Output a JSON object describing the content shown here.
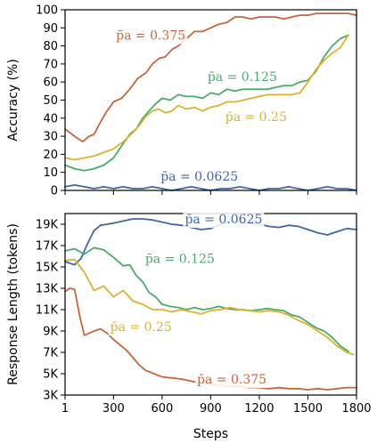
{
  "chart_data": [
    {
      "type": "line",
      "ylabel": "Accuracy (%)",
      "xlabel": "",
      "xlim": [
        1,
        1800
      ],
      "ylim": [
        0,
        100
      ],
      "yticks": [
        0,
        10,
        20,
        30,
        40,
        50,
        60,
        70,
        80,
        90,
        100
      ],
      "ytick_labels": [
        "0",
        "10",
        "20",
        "30",
        "40",
        "50",
        "60",
        "70",
        "80",
        "90",
        "100"
      ],
      "xticks": [
        1,
        300,
        600,
        900,
        1200,
        1500,
        1800
      ],
      "xtick_labels": [],
      "grid": false,
      "series": [
        {
          "name": "p̄a = 0.375",
          "color": "#c8653a",
          "label_x": 530,
          "label_y": 86,
          "x": [
            1,
            60,
            110,
            150,
            180,
            220,
            260,
            300,
            350,
            400,
            450,
            500,
            540,
            580,
            620,
            660,
            700,
            750,
            800,
            850,
            900,
            950,
            1000,
            1050,
            1100,
            1150,
            1200,
            1250,
            1300,
            1350,
            1400,
            1450,
            1500,
            1550,
            1600,
            1650,
            1700,
            1750,
            1800
          ],
          "y": [
            34,
            30,
            27,
            30,
            31,
            38,
            44,
            49,
            51,
            56,
            62,
            65,
            70,
            73,
            74,
            78,
            80,
            84,
            88,
            88,
            90,
            92,
            93,
            96,
            96,
            95,
            96,
            96,
            96,
            95,
            96,
            97,
            97,
            98,
            98,
            98,
            98,
            98,
            97
          ]
        },
        {
          "name": "p̄a = 0.125",
          "color": "#4aab6a",
          "label_x": 1095,
          "label_y": 63,
          "x": [
            1,
            60,
            120,
            180,
            240,
            300,
            360,
            400,
            440,
            480,
            520,
            560,
            600,
            650,
            700,
            750,
            800,
            850,
            900,
            950,
            1000,
            1050,
            1100,
            1150,
            1200,
            1250,
            1300,
            1350,
            1400,
            1450,
            1500,
            1550,
            1600,
            1650,
            1700,
            1750
          ],
          "y": [
            14,
            12,
            11,
            12,
            14,
            18,
            26,
            31,
            34,
            40,
            44,
            48,
            51,
            50,
            53,
            52,
            52,
            51,
            54,
            53,
            56,
            55,
            56,
            56,
            56,
            56,
            57,
            58,
            58,
            60,
            61,
            66,
            74,
            80,
            84,
            86
          ]
        },
        {
          "name": "p̄a = 0.25",
          "color": "#e0b030",
          "label_x": 1180,
          "label_y": 41,
          "x": [
            1,
            60,
            120,
            180,
            240,
            300,
            360,
            420,
            460,
            500,
            540,
            580,
            620,
            660,
            700,
            750,
            800,
            850,
            900,
            950,
            1000,
            1050,
            1100,
            1150,
            1200,
            1250,
            1300,
            1350,
            1400,
            1450,
            1500,
            1550,
            1600,
            1650,
            1700,
            1750
          ],
          "y": [
            18,
            17,
            18,
            19,
            21,
            23,
            27,
            32,
            36,
            41,
            44,
            45,
            43,
            44,
            47,
            45,
            46,
            44,
            46,
            47,
            49,
            49,
            50,
            51,
            52,
            53,
            53,
            53,
            53,
            54,
            60,
            67,
            72,
            76,
            79,
            86
          ]
        },
        {
          "name": "p̄a = 0.0625",
          "color": "#4166a8",
          "label_x": 830,
          "label_y": 8,
          "x": [
            1,
            60,
            120,
            180,
            240,
            300,
            360,
            420,
            480,
            540,
            600,
            660,
            720,
            780,
            840,
            900,
            960,
            1020,
            1080,
            1140,
            1200,
            1260,
            1320,
            1380,
            1440,
            1500,
            1560,
            1620,
            1680,
            1740,
            1800
          ],
          "y": [
            2,
            3,
            2,
            1,
            2,
            1,
            2,
            1,
            1,
            2,
            1,
            0,
            1,
            2,
            1,
            0,
            1,
            1,
            2,
            1,
            0,
            1,
            1,
            2,
            1,
            0,
            1,
            2,
            1,
            1,
            0
          ]
        }
      ]
    },
    {
      "type": "line",
      "ylabel": "Response Length (tokens)",
      "xlabel": "Steps",
      "xlim": [
        1,
        1800
      ],
      "ylim": [
        3000,
        20000
      ],
      "yticks": [
        3000,
        5000,
        7000,
        9000,
        11000,
        13000,
        15000,
        17000,
        19000
      ],
      "ytick_labels": [
        "3K",
        "5K",
        "7K",
        "9K",
        "11K",
        "13K",
        "15K",
        "17K",
        "19K"
      ],
      "xticks": [
        1,
        300,
        600,
        900,
        1200,
        1500,
        1800
      ],
      "xtick_labels": [
        "1",
        "300",
        "600",
        "900",
        "1200",
        "1500",
        "1800"
      ],
      "grid": false,
      "series": [
        {
          "name": "p̄a = 0.0625",
          "color": "#4166a8",
          "label_x": 980,
          "label_y": 19500,
          "x": [
            1,
            60,
            100,
            140,
            180,
            220,
            260,
            300,
            360,
            420,
            480,
            540,
            600,
            660,
            720,
            780,
            840,
            900,
            960,
            1020,
            1080,
            1140,
            1200,
            1260,
            1320,
            1380,
            1440,
            1500,
            1560,
            1620,
            1680,
            1740,
            1800
          ],
          "y": [
            15500,
            15200,
            15800,
            17200,
            18400,
            18900,
            19000,
            19100,
            19300,
            19500,
            19500,
            19400,
            19200,
            19000,
            18900,
            18700,
            18500,
            18600,
            19000,
            19300,
            19200,
            19100,
            19000,
            18800,
            18700,
            18900,
            18800,
            18500,
            18200,
            18000,
            18300,
            18600,
            18500
          ]
        },
        {
          "name": "p̄a = 0.125",
          "color": "#4aab6a",
          "label_x": 710,
          "label_y": 15800,
          "x": [
            1,
            60,
            120,
            180,
            240,
            300,
            360,
            400,
            440,
            480,
            520,
            560,
            600,
            650,
            700,
            750,
            800,
            850,
            900,
            950,
            1000,
            1050,
            1100,
            1150,
            1200,
            1250,
            1300,
            1350,
            1400,
            1450,
            1500,
            1550,
            1600,
            1650,
            1700,
            1750
          ],
          "y": [
            16500,
            16700,
            16200,
            16800,
            16600,
            15900,
            15100,
            15200,
            14200,
            13600,
            12600,
            12200,
            11500,
            11300,
            11200,
            11000,
            11200,
            11000,
            11100,
            11300,
            11100,
            11000,
            11000,
            10900,
            11000,
            11100,
            11000,
            10900,
            10500,
            10300,
            9800,
            9300,
            9000,
            8400,
            7600,
            7100
          ]
        },
        {
          "name": "p̄a = 0.25",
          "color": "#e0b030",
          "label_x": 470,
          "label_y": 9400,
          "x": [
            1,
            60,
            120,
            180,
            240,
            300,
            360,
            420,
            480,
            540,
            600,
            660,
            720,
            780,
            840,
            900,
            960,
            1020,
            1080,
            1140,
            1200,
            1260,
            1320,
            1380,
            1440,
            1500,
            1560,
            1620,
            1680,
            1740,
            1780
          ],
          "y": [
            15600,
            15700,
            14500,
            12800,
            13200,
            12200,
            12800,
            11800,
            11500,
            11000,
            11000,
            10800,
            11000,
            10800,
            10600,
            10900,
            11000,
            11200,
            11000,
            10900,
            10800,
            10900,
            10800,
            10500,
            10000,
            9600,
            9000,
            8400,
            7600,
            7000,
            6800
          ]
        },
        {
          "name": "p̄a = 0.375",
          "color": "#c8653a",
          "label_x": 1030,
          "label_y": 4500,
          "x": [
            1,
            30,
            60,
            90,
            120,
            150,
            180,
            220,
            260,
            300,
            340,
            380,
            420,
            460,
            500,
            550,
            600,
            660,
            720,
            780,
            840,
            900,
            960,
            1020,
            1080,
            1140,
            1200,
            1260,
            1320,
            1380,
            1440,
            1500,
            1560,
            1620,
            1680,
            1740,
            1800
          ],
          "y": [
            12700,
            13000,
            12900,
            10500,
            8600,
            8800,
            9000,
            9200,
            8800,
            8200,
            7700,
            7200,
            6500,
            5800,
            5300,
            5000,
            4700,
            4600,
            4500,
            4300,
            4100,
            4000,
            3900,
            3800,
            3800,
            3700,
            3700,
            3600,
            3700,
            3600,
            3600,
            3500,
            3600,
            3500,
            3600,
            3700,
            3700
          ]
        }
      ]
    }
  ]
}
